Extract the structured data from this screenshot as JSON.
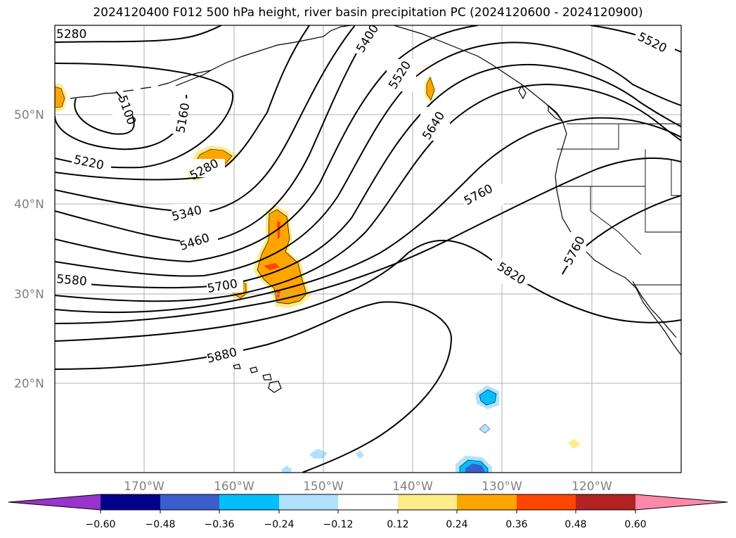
{
  "title": "2024120400 F012 500 hPa height, river basin precipitation PC (2024120600 - 2024120900)",
  "map": {
    "lat_labels": [
      "50°N",
      "40°N",
      "30°N",
      "20°N"
    ],
    "lon_labels": [
      "170°W",
      "160°W",
      "150°W",
      "140°W",
      "130°W",
      "120°W"
    ],
    "contour_labels": [
      "5280",
      "5100",
      "5160",
      "5220",
      "5280",
      "5340",
      "5460",
      "5580",
      "5700",
      "5880",
      "5400",
      "5520",
      "5640",
      "5760",
      "5820",
      "5760",
      "5520"
    ]
  },
  "colorbar": {
    "colors": [
      "#9933cc",
      "#00008b",
      "#3a5fcd",
      "#00bfff",
      "#b0e2ff",
      "#ffffff",
      "#ffec8b",
      "#ffa500",
      "#ff4500",
      "#b22222",
      "#ff88aa"
    ],
    "ticks": [
      "−0.60",
      "−0.48",
      "−0.36",
      "−0.24",
      "−0.12",
      "0.12",
      "0.24",
      "0.36",
      "0.48",
      "0.60"
    ]
  }
}
